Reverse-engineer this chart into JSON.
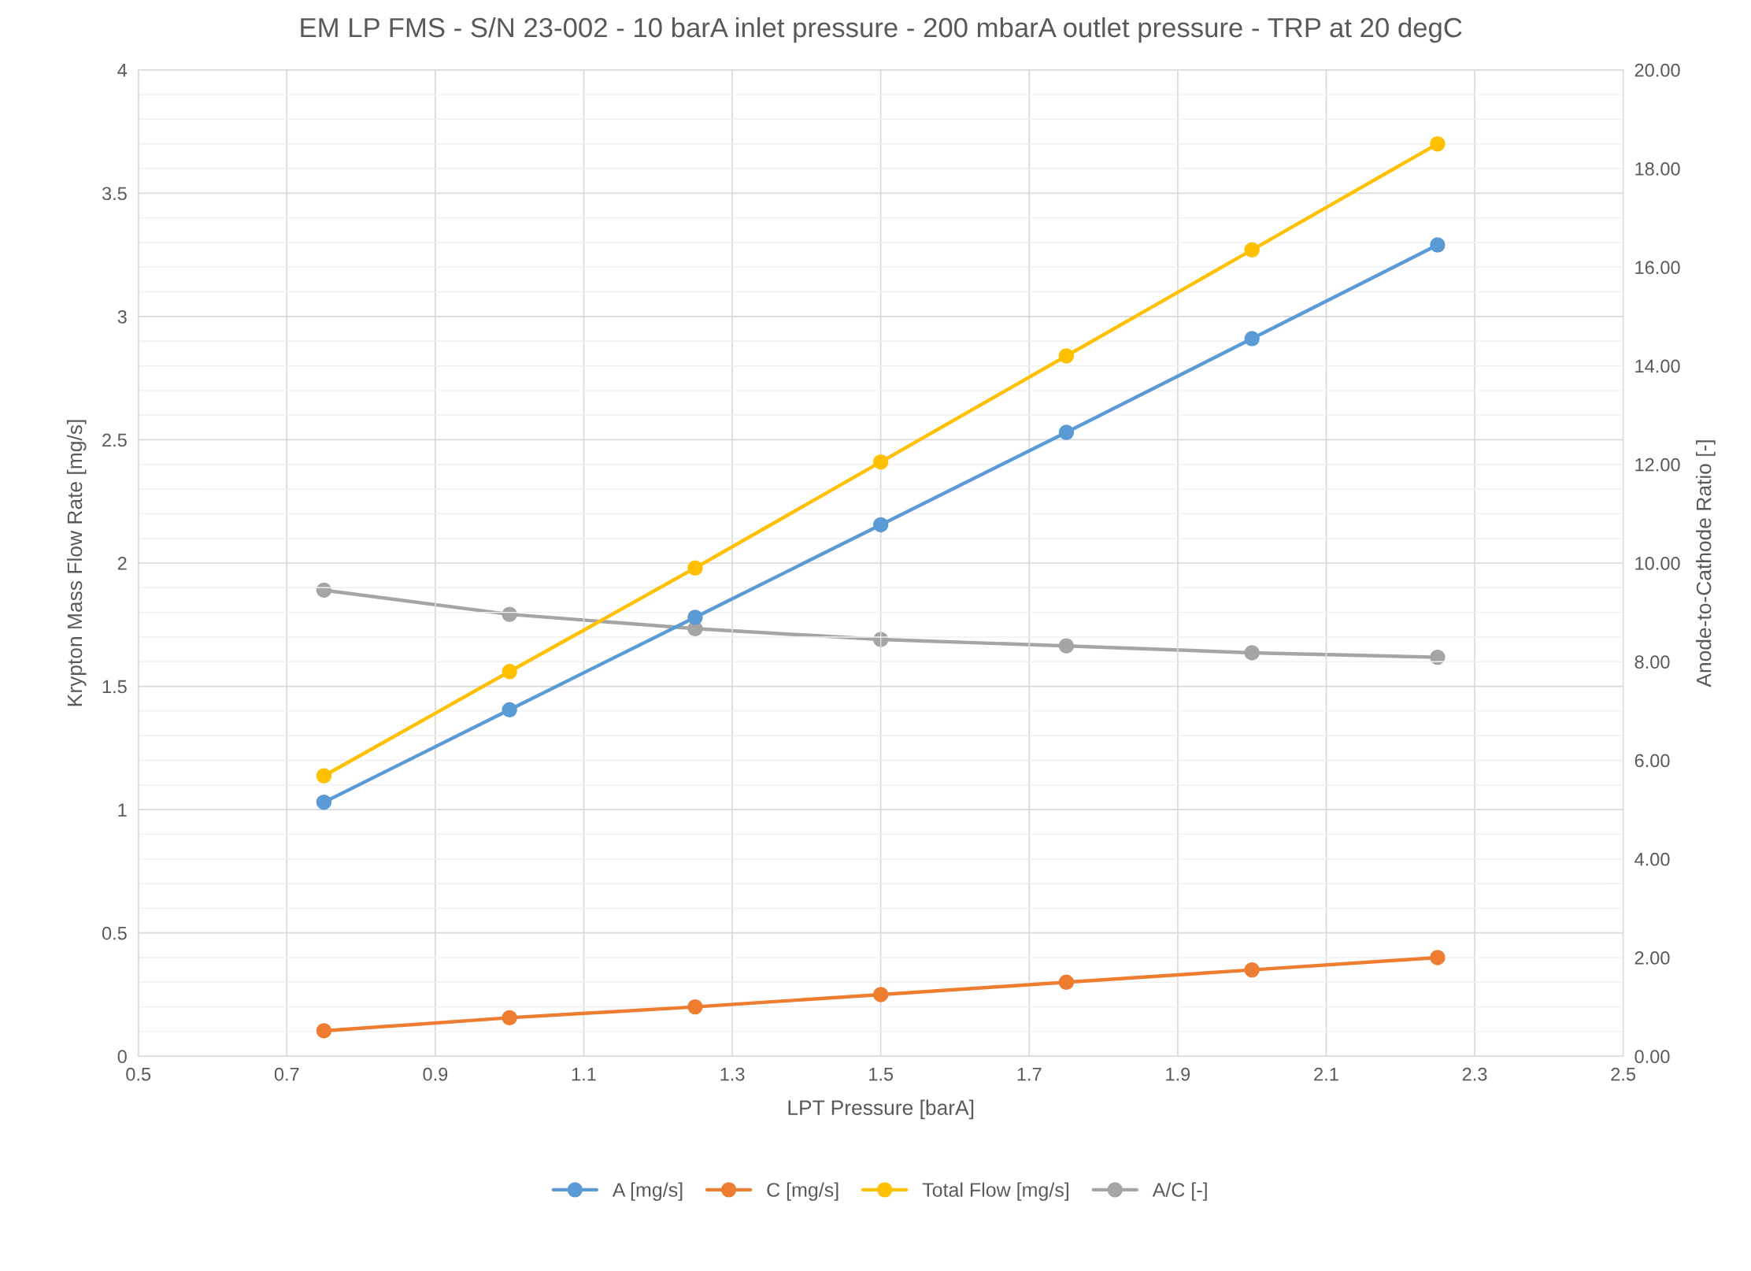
{
  "chart_data": {
    "type": "line",
    "title": "EM LP FMS - S/N 23-002 - 10 barA inlet pressure - 200 mbarA outlet pressure - TRP at 20 degC",
    "xlabel": "LPT Pressure [barA]",
    "ylabel": "Krypton Mass Flow Rate [mg/s]",
    "y2label": "Anode-to-Cathode Ratio [-]",
    "x": [
      0.75,
      1.0,
      1.25,
      1.5,
      1.75,
      2.0,
      2.25
    ],
    "series": [
      {
        "name": "A [mg/s]",
        "color": "#5b9bd5",
        "values": [
          1.03,
          1.405,
          1.78,
          2.155,
          2.53,
          2.91,
          3.29
        ]
      },
      {
        "name": "C [mg/s]",
        "color": "#ed7d31",
        "values": [
          0.103,
          0.156,
          0.2,
          0.25,
          0.3,
          0.35,
          0.4
        ]
      },
      {
        "name": "Total Flow [mg/s]",
        "color": "#ffc000",
        "values": [
          1.137,
          1.56,
          1.98,
          2.41,
          2.84,
          3.27,
          3.7
        ]
      },
      {
        "name": "A/C [-]",
        "color": "#a5a5a5",
        "axis": "y2",
        "values": [
          9.45,
          8.96,
          8.67,
          8.45,
          8.32,
          8.18,
          8.09
        ]
      }
    ],
    "xlim": [
      0.5,
      2.5
    ],
    "xticks": [
      0.5,
      0.7,
      0.9,
      1.1,
      1.3,
      1.5,
      1.7,
      1.9,
      2.1,
      2.3,
      2.5
    ],
    "ylim": [
      0,
      4
    ],
    "yticks": [
      0,
      0.5,
      1,
      1.5,
      2,
      2.5,
      3,
      3.5,
      4
    ],
    "y2lim": [
      0,
      20
    ],
    "y2ticks": [
      {
        "value": 0,
        "label": "0.00"
      },
      {
        "value": 2,
        "label": "2.00"
      },
      {
        "value": 4,
        "label": "4.00"
      },
      {
        "value": 6,
        "label": "6.00"
      },
      {
        "value": 8,
        "label": "8.00"
      },
      {
        "value": 10,
        "label": "10.00"
      },
      {
        "value": 12,
        "label": "12.00"
      },
      {
        "value": 14,
        "label": "14.00"
      },
      {
        "value": 16,
        "label": "16.00"
      },
      {
        "value": 18,
        "label": "18.00"
      },
      {
        "value": 20,
        "label": "20.00"
      }
    ],
    "grid": true,
    "legend": "bottom",
    "marker": "circle",
    "line_style": "solid"
  }
}
